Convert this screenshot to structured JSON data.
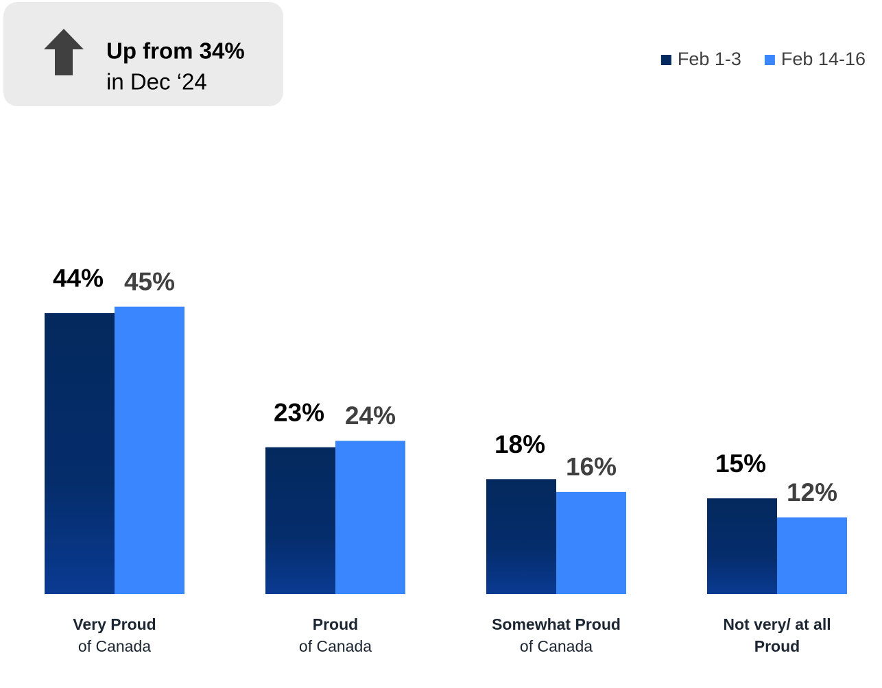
{
  "chart_data": {
    "type": "bar",
    "annotation": {
      "headline": "Up from 34%",
      "detail": "in Dec ‘24"
    },
    "categories": [
      [
        "Very Proud",
        "of Canada"
      ],
      [
        "Proud",
        "of Canada"
      ],
      [
        "Somewhat Proud",
        "of Canada"
      ],
      [
        "Not very/ at all",
        "Proud"
      ]
    ],
    "category_bold": [
      [
        true,
        false
      ],
      [
        true,
        false
      ],
      [
        true,
        false
      ],
      [
        true,
        true
      ]
    ],
    "series": [
      {
        "name": "Feb 1-3",
        "color": "#04295e",
        "values": [
          44,
          23,
          18,
          15
        ],
        "value_labels": [
          "44%",
          "23%",
          "18%",
          "15%"
        ]
      },
      {
        "name": "Feb 14-16",
        "color": "#3a86ff",
        "values": [
          45,
          24,
          16,
          12
        ],
        "value_labels": [
          "45%",
          "24%",
          "16%",
          "12%"
        ]
      }
    ],
    "ylim": [
      0,
      50
    ],
    "legend": "top-right"
  }
}
